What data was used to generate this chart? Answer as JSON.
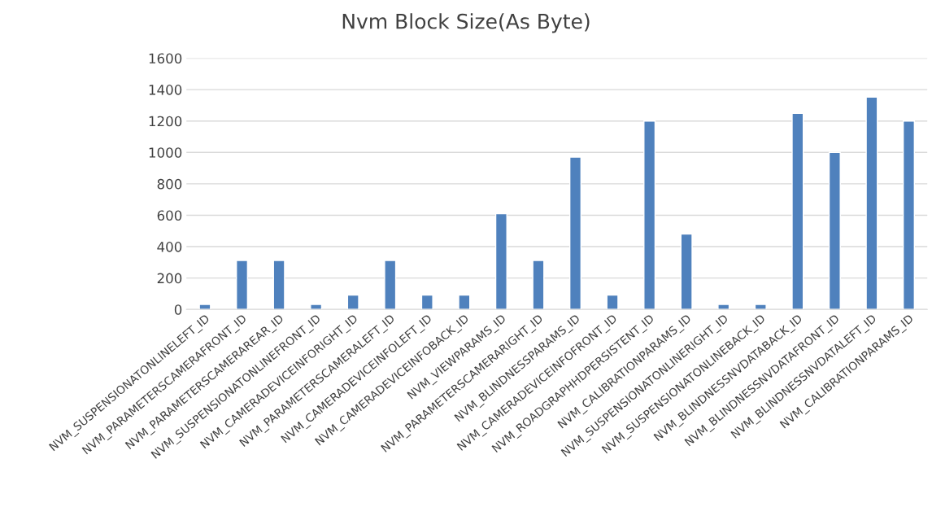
{
  "chart_data": {
    "type": "bar",
    "title": "Nvm Block Size(As Byte)",
    "categories": [
      "NVM_SUSPENSIONATONLINELEFT_ID",
      "NVM_PARAMETERSCAMERAFRONT_ID",
      "NVM_PARAMETERSCAMERAREAR_ID",
      "NVM_SUSPENSIONATONLINEFRONT_ID",
      "NVM_CAMERADEVICEINFORIGHT_ID",
      "NVM_PARAMETERSCAMERALEFT_ID",
      "NVM_CAMERADEVICEINFOLEFT_ID",
      "NVM_CAMERADEVICEINFOBACK_ID",
      "NVM_VIEWPARAMS_ID",
      "NVM_PARAMETERSCAMERARIGHT_ID",
      "NVM_BLINDNESSPARAMS_ID",
      "NVM_CAMERADEVICEINFOFRONT_ID",
      "NVM_ROADGRAPHHDPERSISTENT_ID",
      "NVM_CALIBRATIONPARAMS_ID",
      "NVM_SUSPENSIONATONLINERIGHT_ID",
      "NVM_SUSPENSIONATONLINEBACK_ID",
      "NVM_BLINDNESSNVDATABACK_ID",
      "NVM_BLINDNESSNVDATAFRONT_ID",
      "NVM_BLINDNESSNVDATALEFT_ID",
      "NVM_CALIBRATIONPARAMS_ID"
    ],
    "values": [
      32,
      312,
      312,
      32,
      92,
      312,
      92,
      92,
      610,
      312,
      970,
      92,
      1200,
      480,
      32,
      32,
      1248,
      1000,
      1352,
      1200
    ],
    "color": "#4f81bd",
    "ylim": [
      0,
      1600
    ],
    "yticks": [
      0,
      200,
      400,
      600,
      800,
      1000,
      1200,
      1400,
      1600
    ],
    "grid": "y",
    "legend": false
  }
}
